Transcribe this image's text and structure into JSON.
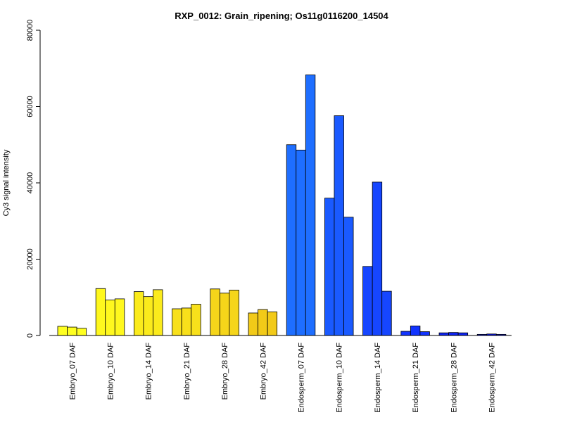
{
  "chart_data": {
    "type": "bar",
    "title": "RXP_0012: Grain_ripening; Os11g0116200_14504",
    "xlabel": "",
    "ylabel": "Cy3 signal intensity",
    "ylim": [
      0,
      80000
    ],
    "yticks": [
      "0",
      "20000",
      "40000",
      "60000",
      "80000"
    ],
    "grid": false,
    "legend": "none",
    "replicates_per_group": 3,
    "groups": [
      {
        "label": "Embryo_07 DAF",
        "values": [
          2400,
          2200,
          1900
        ],
        "color": "#FFFF20"
      },
      {
        "label": "Embryo_10 DAF",
        "values": [
          12300,
          9300,
          9600
        ],
        "color": "#FFF81E"
      },
      {
        "label": "Embryo_14 DAF",
        "values": [
          11500,
          10200,
          12000
        ],
        "color": "#FBEB1C"
      },
      {
        "label": "Embryo_21 DAF",
        "values": [
          7000,
          7200,
          8200
        ],
        "color": "#F8E01B"
      },
      {
        "label": "Embryo_28 DAF",
        "values": [
          12200,
          11100,
          11900
        ],
        "color": "#F5D51A"
      },
      {
        "label": "Embryo_42 DAF",
        "values": [
          5900,
          6800,
          6200
        ],
        "color": "#F2CA18"
      },
      {
        "label": "Endosperm_07 DAF",
        "values": [
          50000,
          48600,
          68300
        ],
        "color": "#1E6EFF"
      },
      {
        "label": "Endosperm_10 DAF",
        "values": [
          36000,
          57600,
          31000
        ],
        "color": "#1A5AFF"
      },
      {
        "label": "Endosperm_14 DAF",
        "values": [
          18100,
          40200,
          11600
        ],
        "color": "#1646FF"
      },
      {
        "label": "Endosperm_21 DAF",
        "values": [
          1100,
          2500,
          1000
        ],
        "color": "#1234FF"
      },
      {
        "label": "Endosperm_28 DAF",
        "values": [
          700,
          800,
          700
        ],
        "color": "#0E24F2"
      },
      {
        "label": "Endosperm_42 DAF",
        "values": [
          300,
          400,
          300
        ],
        "color": "#0A16E0"
      }
    ]
  }
}
